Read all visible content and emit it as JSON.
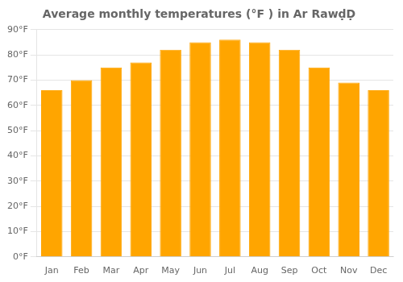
{
  "chart_data": {
    "type": "bar",
    "title": "Average monthly temperatures (°F ) in Ar RawḍḌ",
    "categories": [
      "Jan",
      "Feb",
      "Mar",
      "Apr",
      "May",
      "Jun",
      "Jul",
      "Aug",
      "Sep",
      "Oct",
      "Nov",
      "Dec"
    ],
    "values": [
      66,
      70,
      75,
      77,
      82,
      85,
      86,
      85,
      82,
      75,
      69,
      66
    ],
    "color": "#FFA500",
    "ylim": [
      0,
      90
    ],
    "yticks": [
      {
        "value": 0,
        "label": "0°F"
      },
      {
        "value": 10,
        "label": "10°F"
      },
      {
        "value": 20,
        "label": "20°F"
      },
      {
        "value": 30,
        "label": "30°F"
      },
      {
        "value": 40,
        "label": "40°F"
      },
      {
        "value": 50,
        "label": "50°F"
      },
      {
        "value": 60,
        "label": "60°F"
      },
      {
        "value": 70,
        "label": "70°F"
      },
      {
        "value": 80,
        "label": "80°F"
      },
      {
        "value": 90,
        "label": "90°F"
      }
    ],
    "grid": true
  }
}
